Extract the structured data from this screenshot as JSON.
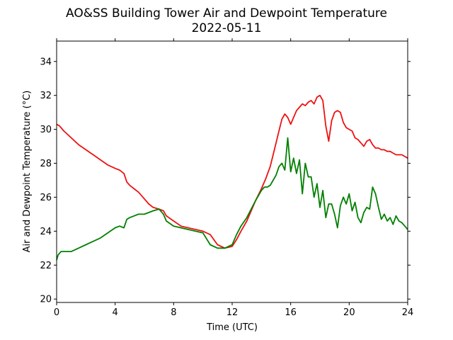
{
  "chart_data": {
    "type": "line",
    "title": "AO&SS Building Tower Air and Dewpoint Temperature",
    "subtitle": "2022-05-11",
    "xlabel": "Time (UTC)",
    "ylabel": "Air and Dewpoint Temperature (°C)",
    "xlim": [
      0,
      24
    ],
    "ylim": [
      19.8,
      35.2
    ],
    "xticks": [
      0,
      4,
      8,
      12,
      16,
      20,
      24
    ],
    "yticks": [
      20,
      22,
      24,
      26,
      28,
      30,
      32,
      34
    ],
    "grid": false,
    "legend": "none",
    "colors": {
      "air": "#ee1111",
      "dewpoint": "#008000"
    },
    "series": [
      {
        "key": "air",
        "x": [
          0,
          0.2,
          0.5,
          1,
          1.5,
          2,
          2.5,
          3,
          3.5,
          4,
          4.3,
          4.6,
          4.8,
          5,
          5.3,
          5.6,
          6,
          6.3,
          6.6,
          7,
          7.3,
          7.5,
          8,
          8.5,
          9,
          9.5,
          10,
          10.5,
          11,
          11.5,
          12,
          12.3,
          12.6,
          13,
          13.3,
          13.6,
          14,
          14.3,
          14.6,
          14.8,
          15,
          15.2,
          15.4,
          15.6,
          15.8,
          16,
          16.2,
          16.4,
          16.6,
          16.8,
          17,
          17.2,
          17.4,
          17.6,
          17.8,
          18,
          18.2,
          18.4,
          18.6,
          18.8,
          19,
          19.2,
          19.4,
          19.6,
          19.8,
          20,
          20.2,
          20.4,
          20.6,
          20.8,
          21,
          21.2,
          21.4,
          21.6,
          21.8,
          22,
          22.2,
          22.4,
          22.6,
          22.8,
          23,
          23.2,
          23.4,
          23.6,
          23.8,
          24
        ],
        "y": [
          30.3,
          30.2,
          29.9,
          29.5,
          29.1,
          28.8,
          28.5,
          28.2,
          27.9,
          27.7,
          27.6,
          27.4,
          26.9,
          26.7,
          26.5,
          26.3,
          25.9,
          25.6,
          25.4,
          25.3,
          25.2,
          24.9,
          24.6,
          24.3,
          24.2,
          24.1,
          24.0,
          23.8,
          23.2,
          23.0,
          23.1,
          23.5,
          24.0,
          24.6,
          25.2,
          25.8,
          26.5,
          27.1,
          27.8,
          28.5,
          29.2,
          29.9,
          30.6,
          30.9,
          30.7,
          30.3,
          30.7,
          31.1,
          31.3,
          31.5,
          31.4,
          31.6,
          31.7,
          31.5,
          31.9,
          32.0,
          31.7,
          30.2,
          29.3,
          30.5,
          31.0,
          31.1,
          31.0,
          30.4,
          30.1,
          30.0,
          29.9,
          29.5,
          29.4,
          29.2,
          29.0,
          29.3,
          29.4,
          29.1,
          28.9,
          28.9,
          28.8,
          28.8,
          28.7,
          28.7,
          28.6,
          28.5,
          28.5,
          28.5,
          28.4,
          28.3
        ]
      },
      {
        "key": "dewpoint",
        "x": [
          0,
          0.1,
          0.3,
          0.5,
          1,
          1.5,
          2,
          2.5,
          3,
          3.5,
          4,
          4.3,
          4.6,
          4.8,
          5,
          5.3,
          5.6,
          6,
          6.3,
          6.6,
          7,
          7.3,
          7.5,
          8,
          8.5,
          9,
          9.5,
          10,
          10.5,
          11,
          11.5,
          12,
          12.3,
          12.6,
          13,
          13.3,
          13.6,
          14,
          14.2,
          14.4,
          14.6,
          14.8,
          15,
          15.2,
          15.4,
          15.6,
          15.8,
          16,
          16.2,
          16.4,
          16.6,
          16.8,
          17,
          17.2,
          17.4,
          17.6,
          17.8,
          18,
          18.2,
          18.4,
          18.6,
          18.8,
          19,
          19.2,
          19.4,
          19.6,
          19.8,
          20,
          20.2,
          20.4,
          20.6,
          20.8,
          21,
          21.2,
          21.4,
          21.6,
          21.8,
          22,
          22.2,
          22.4,
          22.6,
          22.8,
          23,
          23.2,
          23.4,
          23.6,
          23.8,
          24
        ],
        "y": [
          22.3,
          22.6,
          22.8,
          22.8,
          22.8,
          23.0,
          23.2,
          23.4,
          23.6,
          23.9,
          24.2,
          24.3,
          24.2,
          24.7,
          24.8,
          24.9,
          25.0,
          25.0,
          25.1,
          25.2,
          25.3,
          25.0,
          24.6,
          24.3,
          24.2,
          24.1,
          24.0,
          23.9,
          23.2,
          23.0,
          23.0,
          23.2,
          23.8,
          24.3,
          24.8,
          25.3,
          25.8,
          26.4,
          26.6,
          26.6,
          26.7,
          27.0,
          27.3,
          27.8,
          28.0,
          27.6,
          29.5,
          27.5,
          28.3,
          27.4,
          28.2,
          26.2,
          28.0,
          27.2,
          27.2,
          26.0,
          26.8,
          25.4,
          26.4,
          24.8,
          25.6,
          25.6,
          25.0,
          24.2,
          25.5,
          26.0,
          25.6,
          26.2,
          25.2,
          25.7,
          24.8,
          24.5,
          25.1,
          25.4,
          25.3,
          26.6,
          26.2,
          25.4,
          24.7,
          25.0,
          24.6,
          24.8,
          24.4,
          24.9,
          24.6,
          24.5,
          24.3,
          24.1
        ]
      }
    ]
  }
}
